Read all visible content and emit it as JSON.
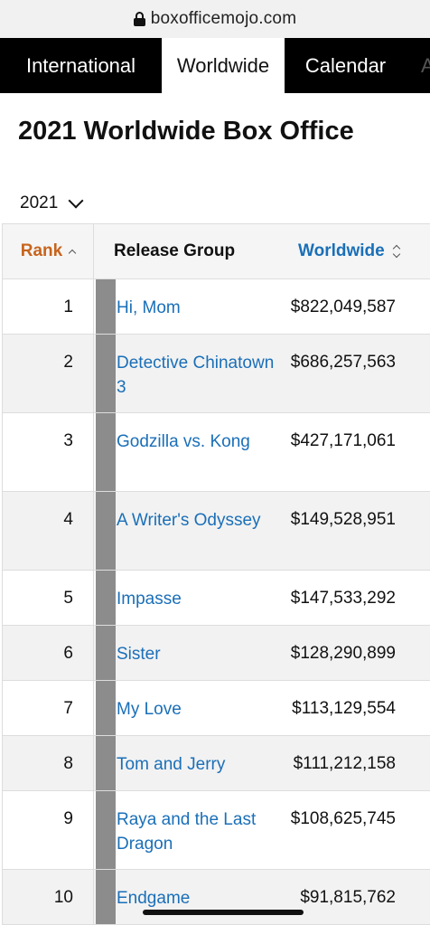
{
  "browser": {
    "url": "boxofficemojo.com",
    "lock_icon": "lock-icon"
  },
  "tabs": [
    {
      "label": "International",
      "active": false
    },
    {
      "label": "Worldwide",
      "active": true
    },
    {
      "label": "Calendar",
      "active": false
    },
    {
      "label": "A",
      "active": false
    }
  ],
  "page": {
    "title": "2021 Worldwide Box Office",
    "year": "2021"
  },
  "table": {
    "headers": {
      "rank": "Rank",
      "group": "Release Group",
      "worldwide": "Worldwide"
    },
    "rows": [
      {
        "rank": "1",
        "title": "Hi, Mom",
        "gross": "$822,049,587"
      },
      {
        "rank": "2",
        "title": "Detective Chinatown 3",
        "gross": "$686,257,563"
      },
      {
        "rank": "3",
        "title": "Godzilla vs. Kong",
        "gross": "$427,171,061"
      },
      {
        "rank": "4",
        "title": "A Writer's Odyssey",
        "gross": "$149,528,951"
      },
      {
        "rank": "5",
        "title": "Impasse",
        "gross": "$147,533,292"
      },
      {
        "rank": "6",
        "title": "Sister",
        "gross": "$128,290,899"
      },
      {
        "rank": "7",
        "title": "My Love",
        "gross": "$113,129,554"
      },
      {
        "rank": "8",
        "title": "Tom and Jerry",
        "gross": "$111,212,158"
      },
      {
        "rank": "9",
        "title": "Raya and the Last Dragon",
        "gross": "$108,625,745"
      },
      {
        "rank": "10",
        "title": "Endgame",
        "gross": "$91,815,762"
      }
    ]
  },
  "colors": {
    "accent_link": "#1a6fb8",
    "rank_header": "#c7641d",
    "tab_bar": "#000000"
  }
}
